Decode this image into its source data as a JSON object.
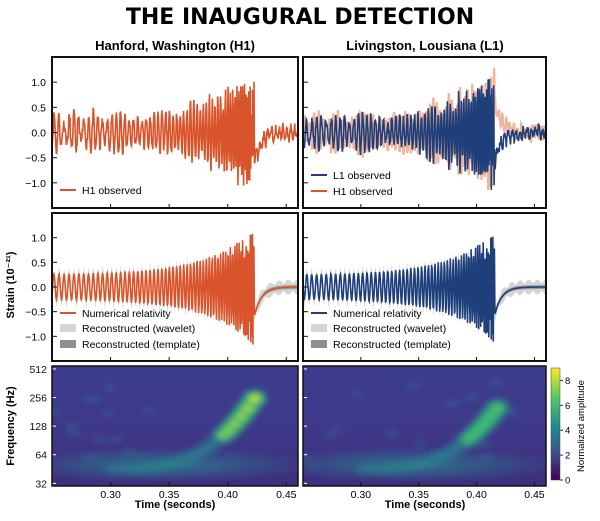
{
  "title": "THE INAUGURAL DETECTION",
  "colors": {
    "h1": "#d9542b",
    "l1": "#1f3f7a",
    "h1_faint": "#f1b59a",
    "wavelet_band": "#d5d5d5",
    "template_band": "#8f8f8f",
    "colormap": [
      "#440154",
      "#3b528b",
      "#21918c",
      "#5ec962",
      "#fde725"
    ]
  },
  "chart_data": [
    {
      "type": "line",
      "panel": "top-left",
      "detector_title": "Hanford, Washington (H1)",
      "ylabel": "",
      "xlim": [
        0.25,
        0.46
      ],
      "ylim": [
        -1.5,
        1.5
      ],
      "yticks": [
        -1.0,
        -0.5,
        0.0,
        0.5,
        1.0
      ],
      "ytick_labels": [
        "−1.0",
        "−0.5",
        "0.0",
        "0.5",
        "1.0"
      ],
      "legend_position": "bottom-left",
      "series": [
        {
          "name": "H1 observed",
          "color": "#d9542b",
          "style": "line"
        }
      ]
    },
    {
      "type": "line",
      "panel": "top-right",
      "detector_title": "Livingston, Lousiana (L1)",
      "xlim": [
        0.25,
        0.46
      ],
      "ylim": [
        -1.5,
        1.5
      ],
      "legend_position": "bottom-left",
      "series": [
        {
          "name": "L1 observed",
          "color": "#1f3f7a",
          "style": "line"
        },
        {
          "name": "H1 observed",
          "color": "#f1b59a",
          "style": "line"
        }
      ]
    },
    {
      "type": "line",
      "panel": "middle-left",
      "ylabel": "Strain (10⁻²¹)",
      "xlim": [
        0.25,
        0.46
      ],
      "ylim": [
        -1.5,
        1.5
      ],
      "yticks": [
        -1.0,
        -0.5,
        0.0,
        0.5,
        1.0
      ],
      "ytick_labels": [
        "−1.0",
        "−0.5",
        "0.0",
        "0.5",
        "1.0"
      ],
      "legend_position": "bottom-left",
      "series": [
        {
          "name": "Numerical relativity",
          "color": "#d9542b",
          "style": "line"
        },
        {
          "name": "Reconstructed (wavelet)",
          "color": "#d5d5d5",
          "style": "band"
        },
        {
          "name": "Reconstructed (template)",
          "color": "#8f8f8f",
          "style": "band"
        }
      ]
    },
    {
      "type": "line",
      "panel": "middle-right",
      "xlim": [
        0.25,
        0.46
      ],
      "ylim": [
        -1.5,
        1.5
      ],
      "legend_position": "bottom-left",
      "series": [
        {
          "name": "Numerical relativity",
          "color": "#1f3f7a",
          "style": "line"
        },
        {
          "name": "Reconstructed (wavelet)",
          "color": "#d5d5d5",
          "style": "band"
        },
        {
          "name": "Reconstructed (template)",
          "color": "#8f8f8f",
          "style": "band"
        }
      ]
    },
    {
      "type": "heatmap",
      "panel": "bottom-left",
      "ylabel": "Frequency (Hz)",
      "xlabel": "Time (seconds)",
      "xlim": [
        0.25,
        0.46
      ],
      "xticks": [
        0.3,
        0.35,
        0.4,
        0.45
      ],
      "xtick_labels": [
        "0.30",
        "0.35",
        "0.40",
        "0.45"
      ],
      "yscale": "log",
      "ylim": [
        30,
        550
      ],
      "yticks": [
        32,
        64,
        128,
        256,
        512
      ],
      "ytick_labels": [
        "32",
        "64",
        "128",
        "256",
        "512"
      ],
      "chirp_peak": {
        "time": 0.423,
        "frequency": 250,
        "amplitude": 9
      }
    },
    {
      "type": "heatmap",
      "panel": "bottom-right",
      "xlabel": "Time (seconds)",
      "xlim": [
        0.25,
        0.46
      ],
      "xticks": [
        0.3,
        0.35,
        0.4,
        0.45
      ],
      "xtick_labels": [
        "0.30",
        "0.35",
        "0.40",
        "0.45"
      ],
      "yscale": "log",
      "ylim": [
        30,
        550
      ],
      "chirp_peak": {
        "time": 0.418,
        "frequency": 200,
        "amplitude": 7
      },
      "colorbar": {
        "label": "Normalized amplitude",
        "range": [
          0,
          9
        ],
        "ticks": [
          0,
          2,
          4,
          6,
          8
        ],
        "tick_labels": [
          "0",
          "2",
          "4",
          "6",
          "8"
        ]
      }
    }
  ]
}
